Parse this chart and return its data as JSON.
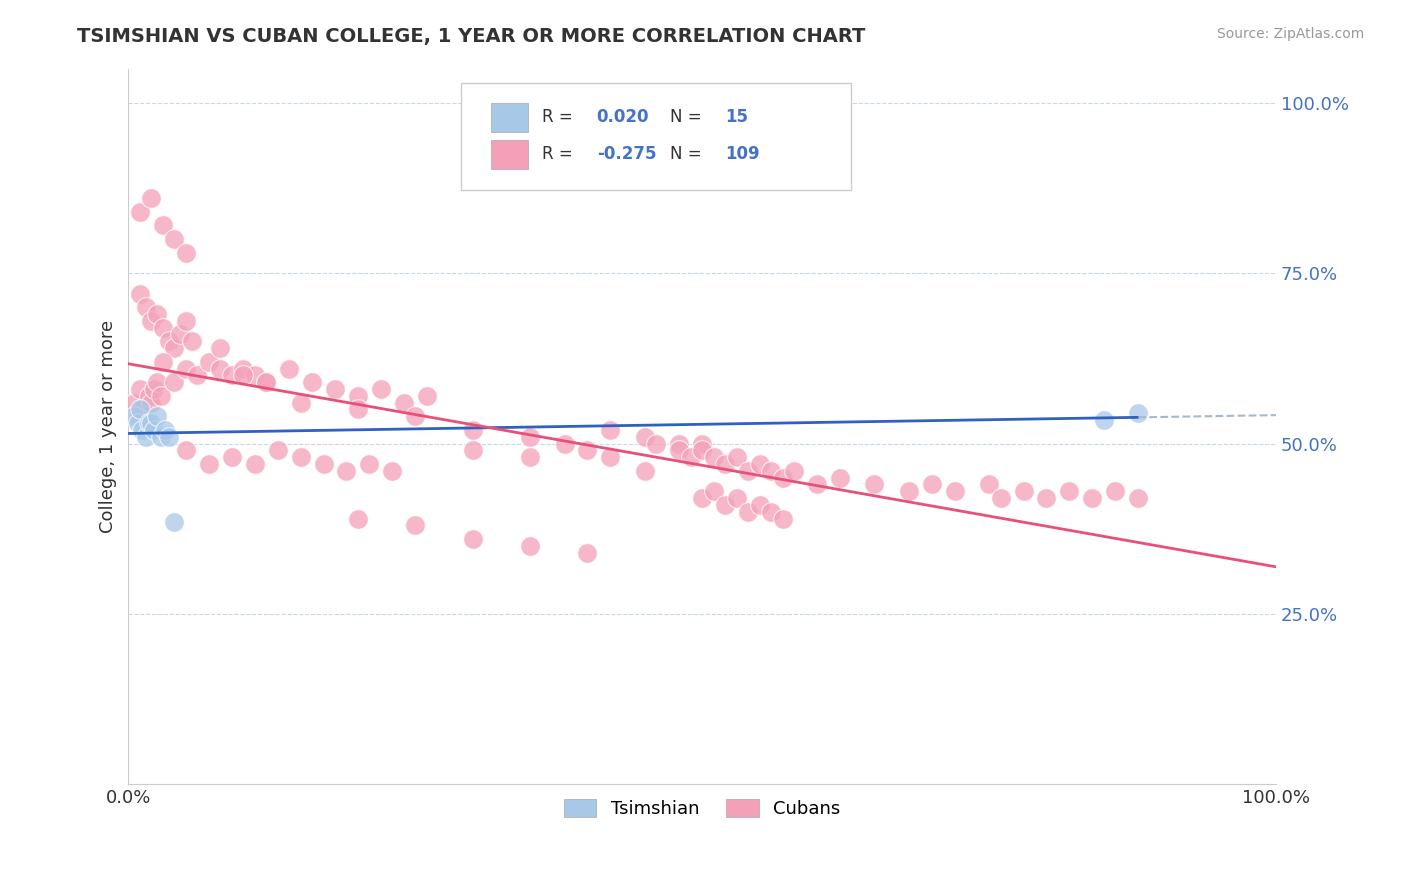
{
  "title": "TSIMSHIAN VS CUBAN COLLEGE, 1 YEAR OR MORE CORRELATION CHART",
  "source_text": "Source: ZipAtlas.com",
  "ylabel": "College, 1 year or more",
  "xlim": [
    0.0,
    1.0
  ],
  "ylim": [
    0.0,
    1.05
  ],
  "ytick_positions": [
    0.25,
    0.5,
    0.75,
    1.0
  ],
  "ytick_labels": [
    "25.0%",
    "50.0%",
    "75.0%",
    "100.0%"
  ],
  "xtick_positions": [
    0.0,
    1.0
  ],
  "xtick_labels": [
    "0.0%",
    "100.0%"
  ],
  "tsimshian_color": "#a8c8e8",
  "cuban_color": "#f4a0b8",
  "tsimshian_line_color": "#3060c0",
  "cuban_line_color": "#e8507a",
  "background_color": "#ffffff",
  "grid_color": "#c8d8e8",
  "dashed_line_color": "#a8b8c8",
  "tsimshian_x": [
    0.005,
    0.008,
    0.01,
    0.012,
    0.015,
    0.018,
    0.02,
    0.022,
    0.025,
    0.028,
    0.032,
    0.035,
    0.04,
    0.85,
    0.88
  ],
  "tsimshian_y": [
    0.54,
    0.53,
    0.55,
    0.52,
    0.51,
    0.53,
    0.53,
    0.52,
    0.54,
    0.51,
    0.52,
    0.51,
    0.385,
    0.535,
    0.545
  ],
  "cuban_x": [
    0.005,
    0.008,
    0.01,
    0.012,
    0.015,
    0.018,
    0.02,
    0.022,
    0.025,
    0.028,
    0.01,
    0.015,
    0.02,
    0.025,
    0.03,
    0.035,
    0.04,
    0.045,
    0.05,
    0.055,
    0.03,
    0.04,
    0.05,
    0.06,
    0.07,
    0.08,
    0.09,
    0.1,
    0.11,
    0.12,
    0.08,
    0.1,
    0.12,
    0.14,
    0.16,
    0.18,
    0.2,
    0.22,
    0.24,
    0.26,
    0.05,
    0.07,
    0.09,
    0.11,
    0.13,
    0.15,
    0.17,
    0.19,
    0.21,
    0.23,
    0.15,
    0.2,
    0.25,
    0.3,
    0.35,
    0.38,
    0.42,
    0.45,
    0.48,
    0.5,
    0.3,
    0.35,
    0.4,
    0.42,
    0.45,
    0.46,
    0.48,
    0.49,
    0.5,
    0.51,
    0.52,
    0.53,
    0.54,
    0.55,
    0.56,
    0.57,
    0.58,
    0.6,
    0.62,
    0.65,
    0.68,
    0.7,
    0.72,
    0.75,
    0.76,
    0.78,
    0.8,
    0.82,
    0.84,
    0.86,
    0.88,
    0.01,
    0.02,
    0.03,
    0.04,
    0.05,
    0.5,
    0.51,
    0.52,
    0.53,
    0.54,
    0.55,
    0.56,
    0.57,
    0.2,
    0.25,
    0.3,
    0.35,
    0.4
  ],
  "cuban_y": [
    0.56,
    0.54,
    0.58,
    0.55,
    0.53,
    0.57,
    0.56,
    0.58,
    0.59,
    0.57,
    0.72,
    0.7,
    0.68,
    0.69,
    0.67,
    0.65,
    0.64,
    0.66,
    0.68,
    0.65,
    0.62,
    0.59,
    0.61,
    0.6,
    0.62,
    0.61,
    0.6,
    0.61,
    0.6,
    0.59,
    0.64,
    0.6,
    0.59,
    0.61,
    0.59,
    0.58,
    0.57,
    0.58,
    0.56,
    0.57,
    0.49,
    0.47,
    0.48,
    0.47,
    0.49,
    0.48,
    0.47,
    0.46,
    0.47,
    0.46,
    0.56,
    0.55,
    0.54,
    0.52,
    0.51,
    0.5,
    0.52,
    0.51,
    0.5,
    0.5,
    0.49,
    0.48,
    0.49,
    0.48,
    0.46,
    0.5,
    0.49,
    0.48,
    0.49,
    0.48,
    0.47,
    0.48,
    0.46,
    0.47,
    0.46,
    0.45,
    0.46,
    0.44,
    0.45,
    0.44,
    0.43,
    0.44,
    0.43,
    0.44,
    0.42,
    0.43,
    0.42,
    0.43,
    0.42,
    0.43,
    0.42,
    0.84,
    0.86,
    0.82,
    0.8,
    0.78,
    0.42,
    0.43,
    0.41,
    0.42,
    0.4,
    0.41,
    0.4,
    0.39,
    0.39,
    0.38,
    0.36,
    0.35,
    0.34
  ]
}
